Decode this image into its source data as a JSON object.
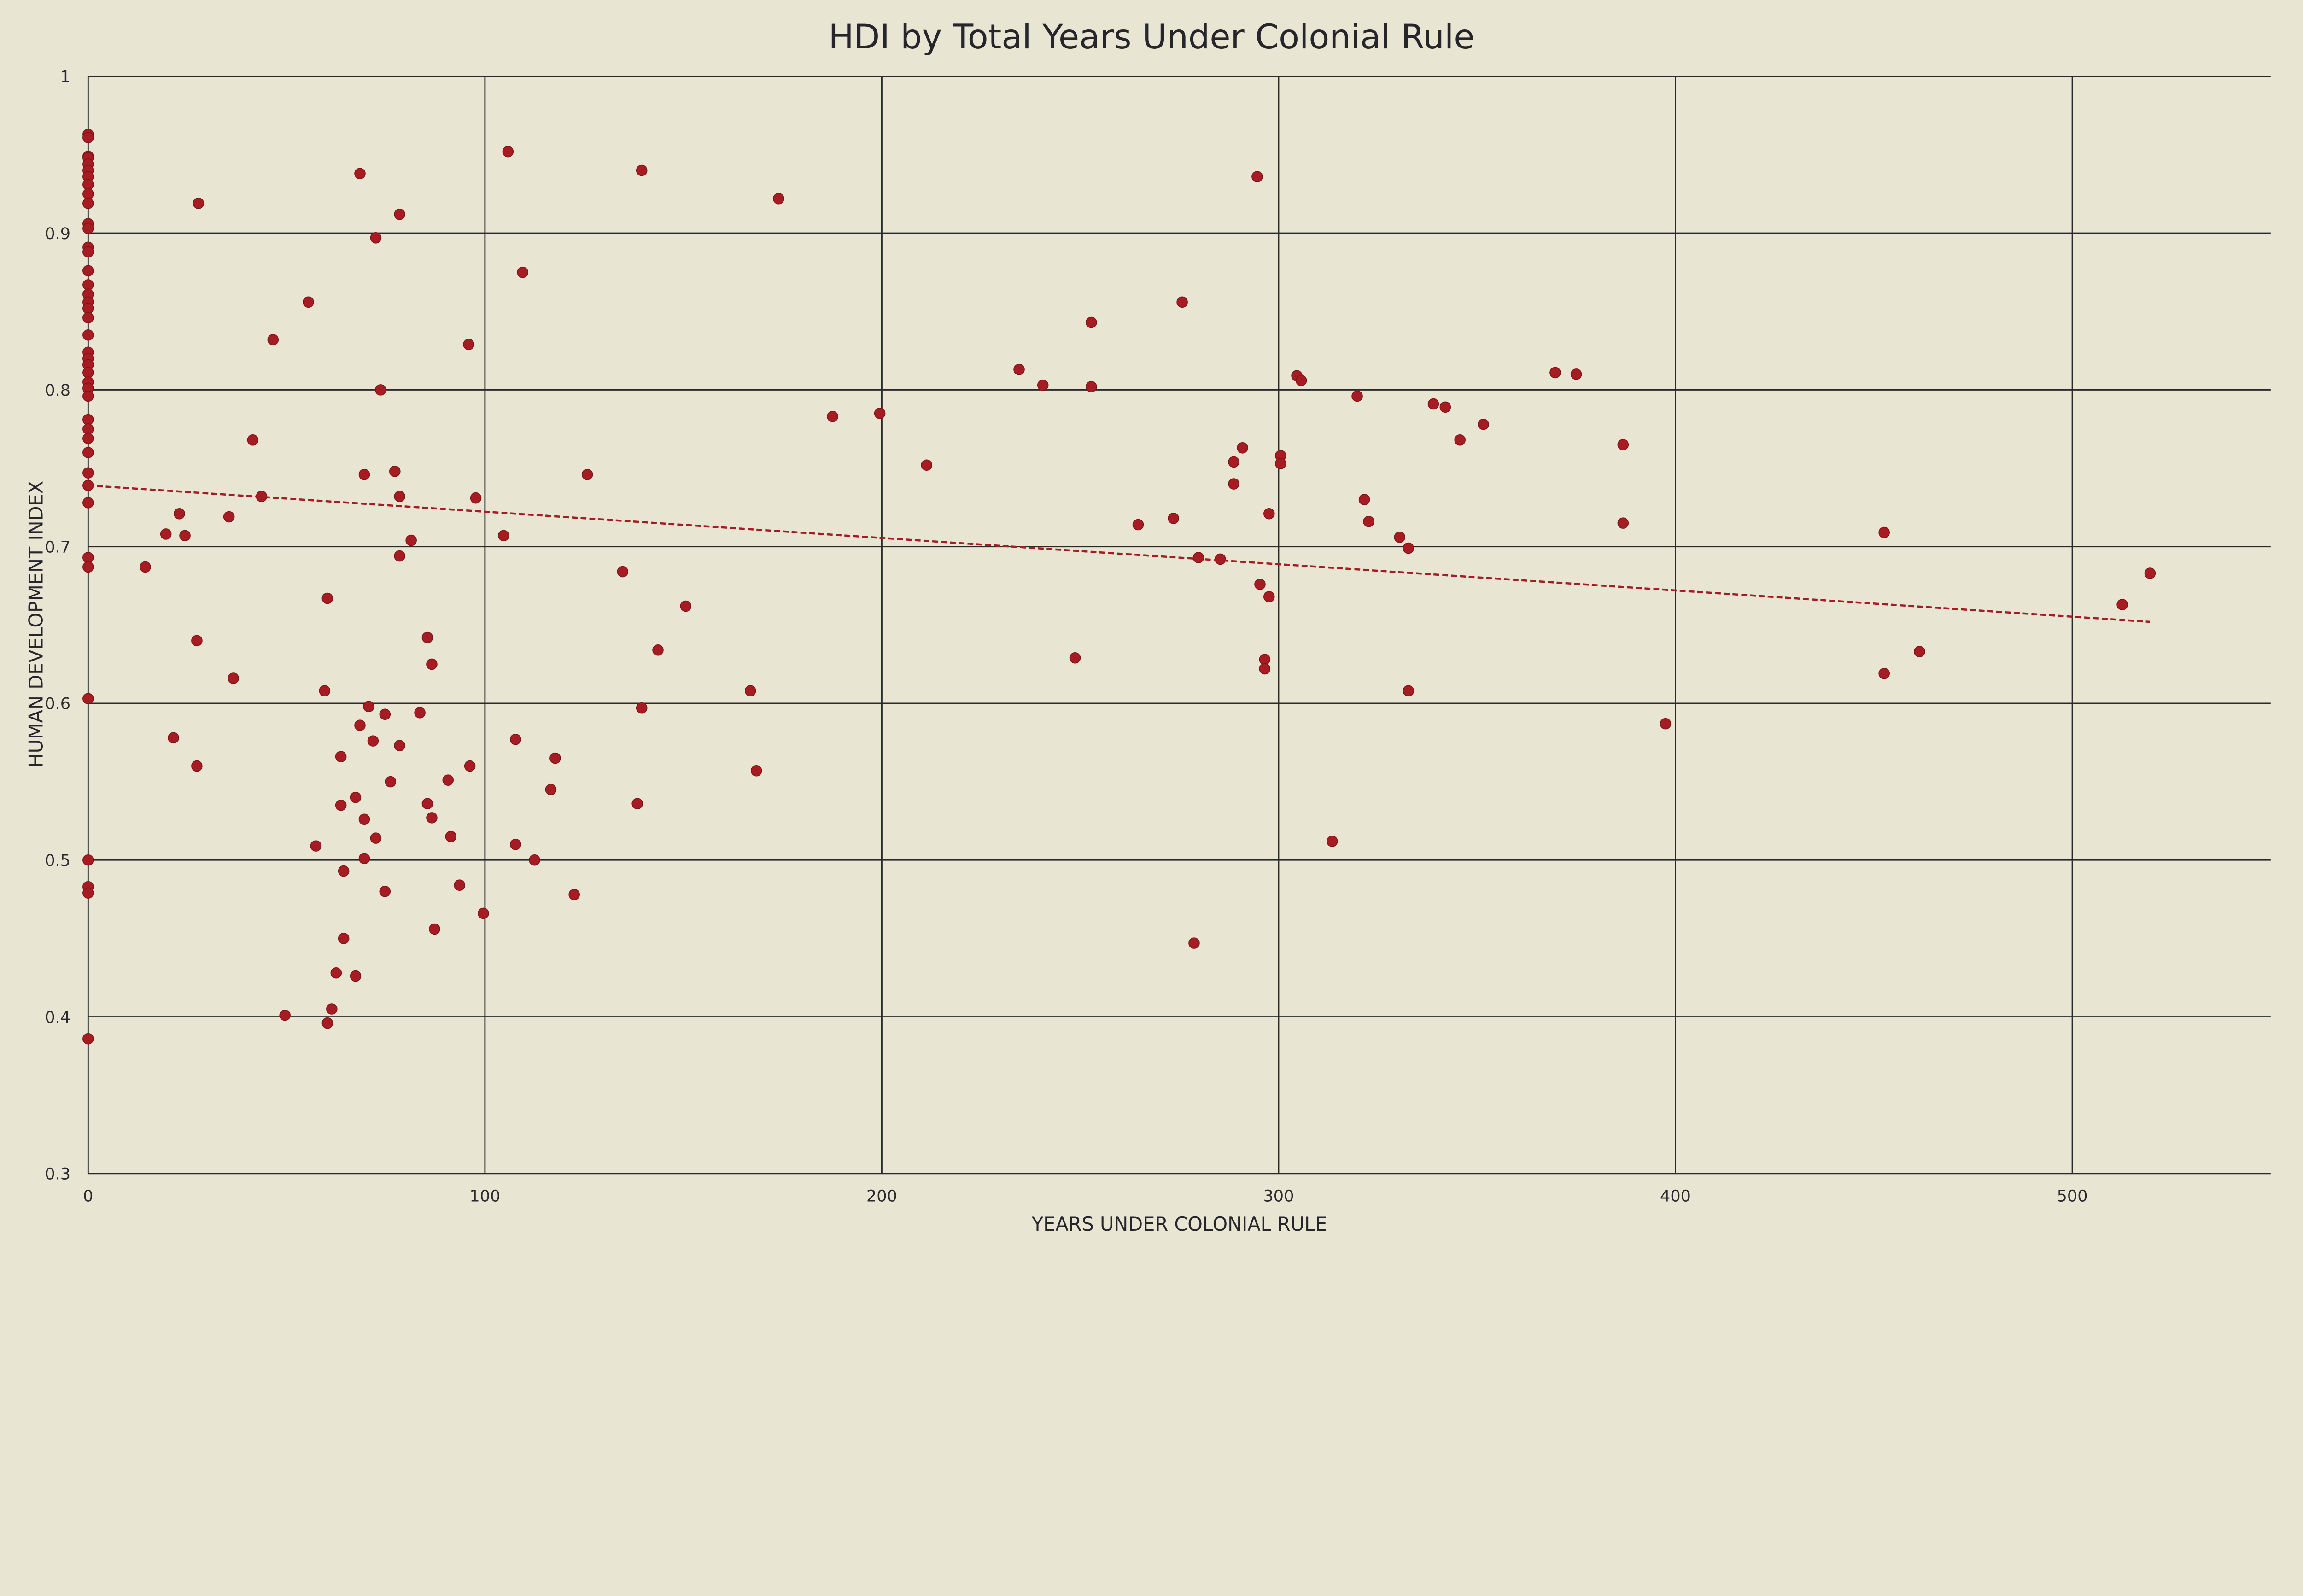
{
  "chart_data": {
    "type": "scatter",
    "title": "HDI by Total Years Under Colonial Rule",
    "xlabel": "YEARS UNDER COLONIAL RULE",
    "ylabel": "HUMAN DEVELOPMENT INDEX",
    "xlim": [
      0,
      550
    ],
    "ylim": [
      0.3,
      1
    ],
    "xticks": [
      "0",
      "100",
      "200",
      "300",
      "400",
      "500"
    ],
    "yticks": [
      "0.3",
      "0.4",
      "0.5",
      "0.6",
      "0.7",
      "0.8",
      "0.9",
      "1"
    ],
    "grid": true,
    "colors": {
      "points": "#a61c22",
      "trendline": "#a61c22",
      "background": "#e8e5d3",
      "grid": "#2a2a2e"
    },
    "trendline": {
      "style": "dashed",
      "x": [
        0,
        519.6
      ],
      "y": [
        0.739,
        0.652
      ]
    },
    "points": [
      [
        0,
        0.963
      ],
      [
        0,
        0.961
      ],
      [
        0,
        0.949
      ],
      [
        0,
        0.948
      ],
      [
        0,
        0.944
      ],
      [
        0,
        0.94
      ],
      [
        0,
        0.936
      ],
      [
        0,
        0.931
      ],
      [
        0,
        0.925
      ],
      [
        0,
        0.919
      ],
      [
        0,
        0.906
      ],
      [
        0,
        0.903
      ],
      [
        0,
        0.891
      ],
      [
        0,
        0.888
      ],
      [
        0,
        0.876
      ],
      [
        0,
        0.867
      ],
      [
        0,
        0.861
      ],
      [
        0,
        0.856
      ],
      [
        0,
        0.852
      ],
      [
        0,
        0.846
      ],
      [
        0,
        0.835
      ],
      [
        0,
        0.824
      ],
      [
        0,
        0.82
      ],
      [
        0,
        0.816
      ],
      [
        0,
        0.811
      ],
      [
        0,
        0.805
      ],
      [
        0,
        0.801
      ],
      [
        0,
        0.796
      ],
      [
        0,
        0.781
      ],
      [
        0,
        0.775
      ],
      [
        0,
        0.769
      ],
      [
        0,
        0.76
      ],
      [
        0,
        0.747
      ],
      [
        0,
        0.739
      ],
      [
        0,
        0.728
      ],
      [
        0,
        0.693
      ],
      [
        0,
        0.687
      ],
      [
        0,
        0.603
      ],
      [
        0,
        0.5
      ],
      [
        0,
        0.483
      ],
      [
        0,
        0.479
      ],
      [
        0,
        0.386
      ],
      [
        27.8,
        0.919
      ],
      [
        68.5,
        0.938
      ],
      [
        72.5,
        0.897
      ],
      [
        78.5,
        0.912
      ],
      [
        105.8,
        0.952
      ],
      [
        139.5,
        0.94
      ],
      [
        174,
        0.922
      ],
      [
        109.5,
        0.875
      ],
      [
        55.5,
        0.856
      ],
      [
        46.6,
        0.832
      ],
      [
        95.9,
        0.829
      ],
      [
        73.7,
        0.8
      ],
      [
        41.5,
        0.768
      ],
      [
        69.6,
        0.746
      ],
      [
        77.3,
        0.748
      ],
      [
        43.7,
        0.732
      ],
      [
        78.5,
        0.732
      ],
      [
        97.7,
        0.731
      ],
      [
        125.8,
        0.746
      ],
      [
        23,
        0.721
      ],
      [
        35.5,
        0.719
      ],
      [
        19.6,
        0.708
      ],
      [
        24.4,
        0.707
      ],
      [
        104.7,
        0.707
      ],
      [
        81.4,
        0.704
      ],
      [
        78.5,
        0.694
      ],
      [
        14.4,
        0.687
      ],
      [
        134.7,
        0.684
      ],
      [
        150.6,
        0.662
      ],
      [
        60.3,
        0.667
      ],
      [
        27.4,
        0.64
      ],
      [
        85.5,
        0.642
      ],
      [
        143.6,
        0.634
      ],
      [
        86.6,
        0.625
      ],
      [
        36.6,
        0.616
      ],
      [
        59.6,
        0.608
      ],
      [
        166.9,
        0.608
      ],
      [
        70.7,
        0.598
      ],
      [
        74.8,
        0.593
      ],
      [
        83.6,
        0.594
      ],
      [
        139.5,
        0.597
      ],
      [
        68.5,
        0.586
      ],
      [
        21.5,
        0.578
      ],
      [
        71.8,
        0.576
      ],
      [
        107.7,
        0.577
      ],
      [
        78.5,
        0.573
      ],
      [
        63.7,
        0.566
      ],
      [
        117.7,
        0.565
      ],
      [
        27.4,
        0.56
      ],
      [
        96.2,
        0.56
      ],
      [
        168.4,
        0.557
      ],
      [
        76.2,
        0.55
      ],
      [
        90.7,
        0.551
      ],
      [
        116.6,
        0.545
      ],
      [
        67.4,
        0.54
      ],
      [
        63.7,
        0.535
      ],
      [
        85.5,
        0.536
      ],
      [
        138.4,
        0.536
      ],
      [
        69.6,
        0.526
      ],
      [
        86.6,
        0.527
      ],
      [
        91.4,
        0.515
      ],
      [
        72.5,
        0.514
      ],
      [
        107.7,
        0.51
      ],
      [
        57.4,
        0.509
      ],
      [
        69.6,
        0.501
      ],
      [
        112.5,
        0.5
      ],
      [
        64.4,
        0.493
      ],
      [
        93.6,
        0.484
      ],
      [
        74.8,
        0.48
      ],
      [
        122.5,
        0.478
      ],
      [
        99.6,
        0.466
      ],
      [
        87.3,
        0.456
      ],
      [
        64.4,
        0.45
      ],
      [
        62.5,
        0.428
      ],
      [
        67.4,
        0.426
      ],
      [
        49.6,
        0.401
      ],
      [
        61.4,
        0.405
      ],
      [
        60.3,
        0.396
      ],
      [
        187.6,
        0.783
      ],
      [
        199.5,
        0.785
      ],
      [
        211.3,
        0.752
      ],
      [
        234.6,
        0.813
      ],
      [
        240.6,
        0.803
      ],
      [
        252.8,
        0.843
      ],
      [
        252.8,
        0.802
      ],
      [
        275.7,
        0.856
      ],
      [
        294.6,
        0.936
      ],
      [
        264.6,
        0.714
      ],
      [
        273.5,
        0.718
      ],
      [
        248.7,
        0.629
      ],
      [
        279.8,
        0.693
      ],
      [
        285.3,
        0.692
      ],
      [
        278.7,
        0.447
      ],
      [
        290.9,
        0.763
      ],
      [
        288.7,
        0.754
      ],
      [
        288.7,
        0.74
      ],
      [
        297.6,
        0.721
      ],
      [
        295.3,
        0.676
      ],
      [
        297.6,
        0.668
      ],
      [
        296.5,
        0.628
      ],
      [
        296.5,
        0.622
      ],
      [
        300.5,
        0.758
      ],
      [
        300.5,
        0.753
      ],
      [
        304.6,
        0.809
      ],
      [
        305.7,
        0.806
      ],
      [
        319.8,
        0.796
      ],
      [
        321.6,
        0.73
      ],
      [
        322.7,
        0.716
      ],
      [
        330.5,
        0.706
      ],
      [
        332.7,
        0.699
      ],
      [
        332.7,
        0.608
      ],
      [
        313.5,
        0.512
      ],
      [
        339,
        0.791
      ],
      [
        342,
        0.789
      ],
      [
        345.7,
        0.768
      ],
      [
        351.6,
        0.778
      ],
      [
        369.7,
        0.811
      ],
      [
        375,
        0.81
      ],
      [
        386.8,
        0.765
      ],
      [
        386.8,
        0.715
      ],
      [
        397.5,
        0.587
      ],
      [
        452.6,
        0.709
      ],
      [
        452.6,
        0.619
      ],
      [
        461.5,
        0.633
      ],
      [
        512.6,
        0.663
      ],
      [
        519.6,
        0.683
      ]
    ]
  }
}
